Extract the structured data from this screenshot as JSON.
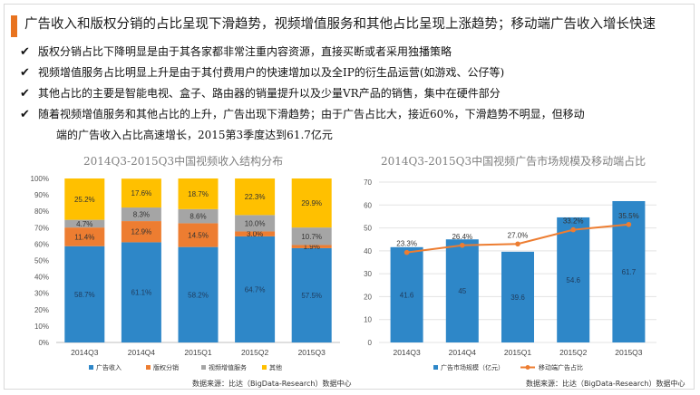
{
  "header": {
    "title": "广告收入和版权分销的占比呈现下滑趋势，视频增值服务和其他占比呈现上涨趋势；移动端广告收入增长快速"
  },
  "bullets": [
    {
      "text": "版权分销占比下降明显是由于其各家都非常注重内容资源，直接买断或者采用独播策略"
    },
    {
      "text": "视频增值服务占比明显上升是由于其付费用户的快速增加以及全IP的衍生品运营(如游戏、公仔等)"
    },
    {
      "text": "其他占比的主要是智能电视、盒子、路由器的销量提升以及少量VR产品的销售，集中在硬件部分"
    },
    {
      "text": "随着视频增值服务和其他占比的上升，广告出现下滑趋势；由于广告占比大，接近60%，下滑趋势不明显，但移动"
    }
  ],
  "bullet_continuation": "端的广告收入占比高速增长，2015第3季度达到61.7亿元",
  "colors": {
    "accent": "#e8731f",
    "blue": "#2e87c8",
    "orange": "#ed7d31",
    "gray": "#a5a5a5",
    "yellow": "#ffc000"
  },
  "chart_data": [
    {
      "type": "bar",
      "stacked": true,
      "title": "2014Q3-2015Q3中国视频收入结构分布",
      "categories": [
        "2014Q3",
        "2014Q4",
        "2015Q1",
        "2015Q2",
        "2015Q3"
      ],
      "ylim": [
        0,
        100
      ],
      "yticks": [
        "0%",
        "10%",
        "20%",
        "30%",
        "40%",
        "50%",
        "60%",
        "70%",
        "80%",
        "90%",
        "100%"
      ],
      "series": [
        {
          "name": "广告收入",
          "color": "#2e87c8",
          "values": [
            58.7,
            61.1,
            58.2,
            64.7,
            57.5
          ],
          "labels": [
            "58.7%",
            "61.1%",
            "58.2%",
            "64.7%",
            "57.5%"
          ]
        },
        {
          "name": "版权分销",
          "color": "#ed7d31",
          "values": [
            11.4,
            12.9,
            14.5,
            3.0,
            1.9
          ],
          "labels": [
            "11.4%",
            "12.9%",
            "14.5%",
            "3.0%",
            "1.9%"
          ]
        },
        {
          "name": "视频增值服务",
          "color": "#a5a5a5",
          "values": [
            4.7,
            8.3,
            8.6,
            10.0,
            10.7
          ],
          "labels": [
            "4.7%",
            "8.3%",
            "8.6%",
            "10.0%",
            "10.7%"
          ]
        },
        {
          "name": "其他",
          "color": "#ffc000",
          "values": [
            25.2,
            17.6,
            18.7,
            22.3,
            29.9
          ],
          "labels": [
            "25.2%",
            "17.6%",
            "18.7%",
            "22.3%",
            "29.9%"
          ]
        }
      ],
      "legend": "bottom",
      "source": "数据来源：比达（BigData-Research）数据中心"
    },
    {
      "type": "bar+line",
      "title": "2014Q3-2015Q3中国视频广告市场规模及移动端占比",
      "categories": [
        "2014Q3",
        "2014Q4",
        "2015Q1",
        "2015Q2",
        "2015Q3"
      ],
      "ylim": [
        0,
        70
      ],
      "yticks": [
        "0",
        "10",
        "20",
        "30",
        "40",
        "50",
        "60",
        "70"
      ],
      "bar_series": {
        "name": "广告市场规模（亿元）",
        "color": "#2e87c8",
        "values": [
          41.6,
          45,
          39.6,
          54.6,
          61.7
        ],
        "labels": [
          "41.6",
          "45",
          "39.6",
          "54.6",
          "61.7"
        ]
      },
      "line_series": {
        "name": "移动端广告占比",
        "color": "#ed7d31",
        "values": [
          23.3,
          26.4,
          27.0,
          33.2,
          35.5
        ],
        "labels": [
          "23.3%",
          "26.4%",
          "27.0%",
          "33.2%",
          "35.5%"
        ]
      },
      "legend": "bottom",
      "source": "数据来源：比达（BigData-Research）数据中心"
    }
  ]
}
